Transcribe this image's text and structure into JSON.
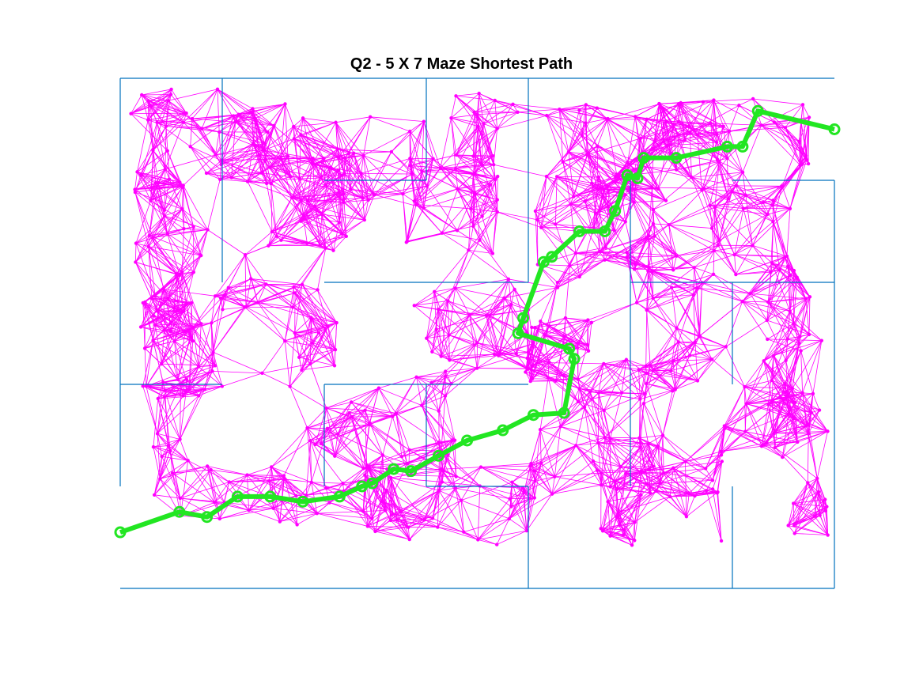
{
  "figure": {
    "title": "Q2 - 5 X 7 Maze Shortest Path"
  },
  "colors": {
    "maze_walls": "#0072BD",
    "prm_graph": "#FF00FF",
    "shortest_path": "#22E622"
  },
  "maze": {
    "rows": 5,
    "cols": 7,
    "walls": [
      [
        0,
        0,
        7,
        0
      ],
      [
        0,
        5,
        7,
        5
      ],
      [
        0,
        0,
        0,
        4
      ],
      [
        7,
        1,
        7,
        5
      ],
      [
        1,
        0,
        1,
        2
      ],
      [
        3,
        0,
        3,
        1
      ],
      [
        4,
        0,
        4,
        2
      ],
      [
        5,
        1,
        5,
        4
      ],
      [
        6,
        2,
        6,
        3
      ],
      [
        6,
        4,
        6,
        5
      ],
      [
        3,
        3,
        3,
        4
      ],
      [
        2,
        3,
        2,
        4
      ],
      [
        4,
        4,
        4,
        5
      ],
      [
        2,
        1,
        3,
        1
      ],
      [
        2,
        2,
        4,
        2
      ],
      [
        0,
        3,
        1,
        3
      ],
      [
        2,
        3,
        4,
        3
      ],
      [
        3,
        4,
        4,
        4
      ],
      [
        6,
        1,
        7,
        1
      ],
      [
        5,
        2,
        7,
        2
      ]
    ]
  },
  "shortest_path": {
    "start": [
      0,
      4.45
    ],
    "goal": [
      7,
      0.5
    ],
    "waypoints": [
      [
        0,
        4.45
      ],
      [
        0.58,
        4.25
      ],
      [
        0.85,
        4.3
      ],
      [
        1.15,
        4.1
      ],
      [
        1.47,
        4.1
      ],
      [
        1.79,
        4.15
      ],
      [
        2.15,
        4.1
      ],
      [
        2.37,
        4.0
      ],
      [
        2.47,
        3.97
      ],
      [
        2.68,
        3.83
      ],
      [
        2.85,
        3.85
      ],
      [
        3.12,
        3.7
      ],
      [
        3.4,
        3.55
      ],
      [
        3.75,
        3.45
      ],
      [
        4.05,
        3.3
      ],
      [
        4.35,
        3.28
      ],
      [
        4.45,
        2.75
      ],
      [
        4.4,
        2.65
      ],
      [
        3.9,
        2.5
      ],
      [
        3.95,
        2.35
      ],
      [
        4.15,
        1.8
      ],
      [
        4.23,
        1.75
      ],
      [
        4.5,
        1.5
      ],
      [
        4.75,
        1.5
      ],
      [
        4.85,
        1.3
      ],
      [
        4.97,
        0.95
      ],
      [
        5.07,
        0.98
      ],
      [
        5.13,
        0.78
      ],
      [
        5.45,
        0.78
      ],
      [
        5.95,
        0.67
      ],
      [
        6.1,
        0.67
      ],
      [
        6.25,
        0.32
      ],
      [
        7.0,
        0.5
      ]
    ]
  }
}
